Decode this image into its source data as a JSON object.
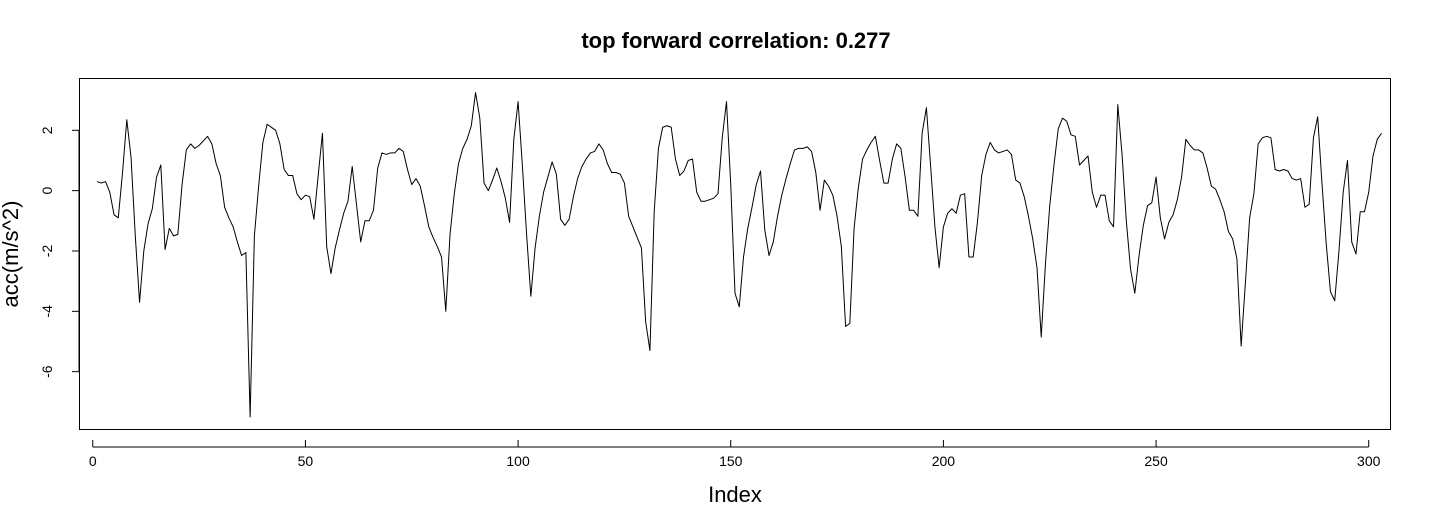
{
  "chart_data": {
    "type": "line",
    "title": "top forward correlation: 0.277",
    "xlabel": "Index",
    "ylabel": "acc(m/s^2)",
    "xlim": [
      -3,
      305
    ],
    "ylim": [
      -7.9,
      3.7
    ],
    "x_ticks": [
      0,
      50,
      100,
      150,
      200,
      250,
      300
    ],
    "y_ticks": [
      2,
      0,
      -2,
      -4,
      -6
    ],
    "grid": false,
    "legend": "none",
    "line_color": "#000000",
    "series": [
      {
        "x_start": 1,
        "values": [
          0.3,
          0.25,
          0.3,
          -0.05,
          -0.8,
          -0.9,
          0.6,
          2.35,
          1.1,
          -1.5,
          -3.7,
          -2.0,
          -1.1,
          -0.6,
          0.45,
          0.85,
          -1.95,
          -1.25,
          -1.5,
          -1.45,
          0.2,
          1.35,
          1.55,
          1.4,
          1.5,
          1.65,
          1.8,
          1.55,
          0.9,
          0.5,
          -0.55,
          -0.9,
          -1.2,
          -1.7,
          -2.15,
          -2.05,
          -7.5,
          -1.5,
          0.15,
          1.6,
          2.2,
          2.1,
          2.0,
          1.55,
          0.7,
          0.5,
          0.5,
          -0.1,
          -0.3,
          -0.15,
          -0.2,
          -0.95,
          0.5,
          1.9,
          -1.85,
          -2.75,
          -1.9,
          -1.3,
          -0.75,
          -0.35,
          0.8,
          -0.45,
          -1.7,
          -1.0,
          -1.0,
          -0.65,
          0.75,
          1.25,
          1.2,
          1.25,
          1.25,
          1.4,
          1.3,
          0.7,
          0.2,
          0.4,
          0.15,
          -0.5,
          -1.2,
          -1.55,
          -1.85,
          -2.2,
          -4.0,
          -1.45,
          -0.1,
          0.9,
          1.4,
          1.7,
          2.15,
          3.25,
          2.4,
          0.25,
          0.0,
          0.35,
          0.75,
          0.3,
          -0.25,
          -1.05,
          1.7,
          2.95,
          0.85,
          -1.45,
          -3.5,
          -1.9,
          -0.85,
          -0.05,
          0.45,
          0.95,
          0.55,
          -0.95,
          -1.15,
          -0.95,
          -0.2,
          0.4,
          0.8,
          1.05,
          1.25,
          1.3,
          1.55,
          1.35,
          0.9,
          0.6,
          0.6,
          0.55,
          0.25,
          -0.85,
          -1.2,
          -1.55,
          -1.9,
          -4.35,
          -5.3,
          -0.7,
          1.4,
          2.1,
          2.15,
          2.1,
          1.05,
          0.5,
          0.65,
          1.0,
          1.05,
          -0.05,
          -0.35,
          -0.35,
          -0.3,
          -0.25,
          -0.1,
          1.75,
          2.95,
          0.2,
          -3.4,
          -3.85,
          -2.2,
          -1.25,
          -0.55,
          0.2,
          0.65,
          -1.3,
          -2.15,
          -1.7,
          -0.85,
          -0.15,
          0.4,
          0.9,
          1.35,
          1.4,
          1.4,
          1.45,
          1.3,
          0.6,
          -0.65,
          0.35,
          0.15,
          -0.15,
          -0.85,
          -1.85,
          -4.5,
          -4.4,
          -1.25,
          0.1,
          1.05,
          1.35,
          1.6,
          1.8,
          1.0,
          0.25,
          0.25,
          1.05,
          1.55,
          1.4,
          0.45,
          -0.65,
          -0.65,
          -0.85,
          1.9,
          2.75,
          0.8,
          -1.2,
          -2.55,
          -1.2,
          -0.75,
          -0.6,
          -0.75,
          -0.15,
          -0.1,
          -2.2,
          -2.2,
          -1.05,
          0.5,
          1.2,
          1.6,
          1.35,
          1.25,
          1.3,
          1.35,
          1.2,
          0.35,
          0.25,
          -0.2,
          -0.85,
          -1.6,
          -2.55,
          -4.85,
          -2.4,
          -0.5,
          0.85,
          2.05,
          2.4,
          2.3,
          1.85,
          1.8,
          0.85,
          1.0,
          1.15,
          -0.05,
          -0.55,
          -0.15,
          -0.15,
          -1.0,
          -1.2,
          2.85,
          1.2,
          -1.0,
          -2.6,
          -3.4,
          -2.15,
          -1.15,
          -0.5,
          -0.4,
          0.45,
          -0.9,
          -1.6,
          -1.05,
          -0.8,
          -0.3,
          0.45,
          1.7,
          1.5,
          1.35,
          1.35,
          1.25,
          0.75,
          0.15,
          0.05,
          -0.3,
          -0.7,
          -1.35,
          -1.6,
          -2.25,
          -5.15,
          -3.05,
          -0.9,
          -0.1,
          1.55,
          1.75,
          1.8,
          1.75,
          0.7,
          0.65,
          0.7,
          0.65,
          0.4,
          0.35,
          0.4,
          -0.55,
          -0.45,
          1.75,
          2.45,
          0.25,
          -1.75,
          -3.35,
          -3.65,
          -2.0,
          -0.05,
          1.0,
          -1.7,
          -2.1,
          -0.7,
          -0.7,
          -0.05,
          1.15,
          1.7,
          1.9
        ]
      }
    ]
  }
}
